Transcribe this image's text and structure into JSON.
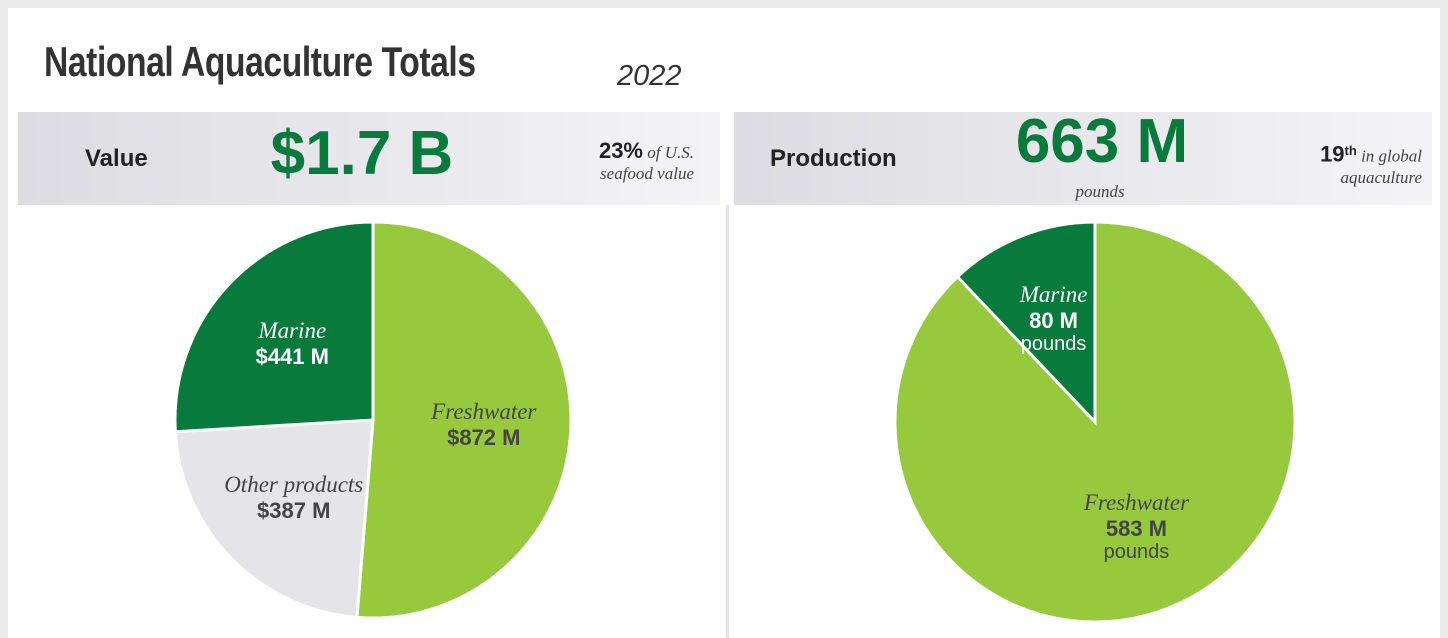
{
  "title": "National Aquaculture Totals",
  "year": "2022",
  "chart_data": [
    {
      "type": "pie",
      "title": "Value",
      "headline": "$1.7 B",
      "note_emphasis": "23%",
      "note_text": "of U.S. seafood value",
      "categories": [
        "Freshwater",
        "Other products",
        "Marine"
      ],
      "values": [
        872,
        387,
        441
      ],
      "value_labels": [
        "$872 M",
        "$387 M",
        "$441 M"
      ],
      "colors": [
        "#97c93d",
        "#e4e4e9",
        "#077a3c"
      ]
    },
    {
      "type": "pie",
      "title": "Production",
      "headline": "663 M",
      "headline_unit": "pounds",
      "note_emphasis": "19",
      "note_superscript": "th",
      "note_text": "in global aquaculture",
      "categories": [
        "Freshwater",
        "Marine"
      ],
      "values": [
        583,
        80
      ],
      "value_labels": [
        "583 M",
        "80 M"
      ],
      "value_unit": "pounds",
      "colors": [
        "#97c93d",
        "#077a3c"
      ]
    }
  ]
}
